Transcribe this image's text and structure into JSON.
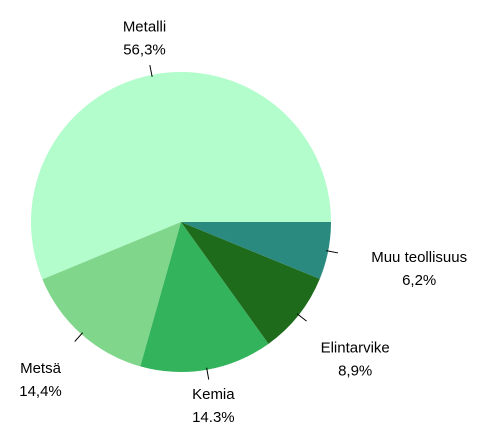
{
  "chart_data": {
    "type": "pie",
    "categories": [
      "Metalli",
      "Metsä",
      "Kemia",
      "Elintarvike",
      "Muu teollisuus"
    ],
    "values": [
      56.3,
      14.4,
      14.3,
      8.9,
      6.2
    ],
    "value_labels": [
      "56,3%",
      "14,4%",
      "14.3%",
      "8,9%",
      "6,2%"
    ],
    "colors": [
      "#b3fdcc",
      "#80d68a",
      "#33b35b",
      "#1e6b1c",
      "#2a8a80"
    ]
  }
}
